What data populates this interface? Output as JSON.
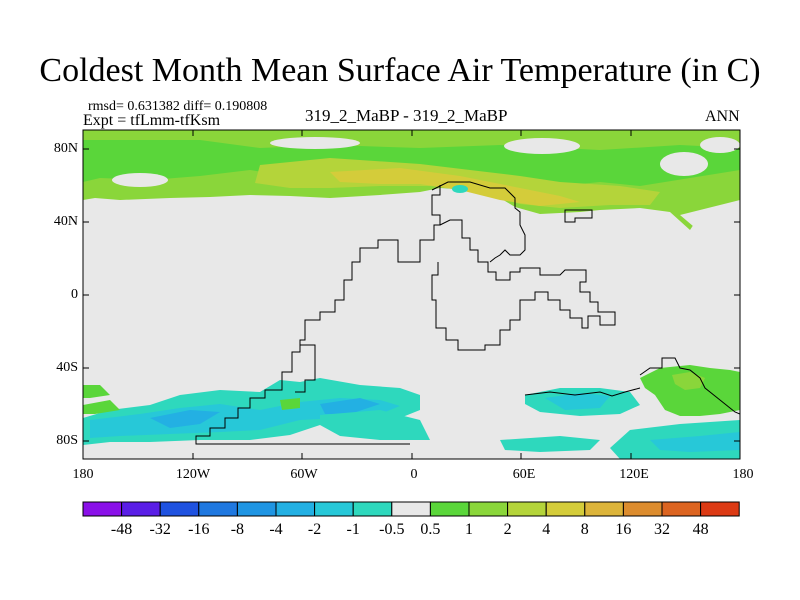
{
  "title": "Coldest Month Mean Surface Air Temperature (in C)",
  "stats_line": "rmsd= 0.631382 diff= 0.190808",
  "expt_line": "Expt = tfLmm-tfKsm",
  "center_label": "319_2_MaBP - 319_2_MaBP",
  "season_label": "ANN",
  "y_axis": {
    "ticks": [
      {
        "label": "80N",
        "lat": 80
      },
      {
        "label": "40N",
        "lat": 40
      },
      {
        "label": "0",
        "lat": 0
      },
      {
        "label": "40S",
        "lat": -40
      },
      {
        "label": "80S",
        "lat": -80
      }
    ]
  },
  "x_axis": {
    "ticks": [
      {
        "label": "180",
        "lon": -180
      },
      {
        "label": "120W",
        "lon": -120
      },
      {
        "label": "60W",
        "lon": -60
      },
      {
        "label": "0",
        "lon": 0
      },
      {
        "label": "60E",
        "lon": 60
      },
      {
        "label": "120E",
        "lon": 120
      },
      {
        "label": "180",
        "lon": 180
      }
    ]
  },
  "colorbar": {
    "colors": [
      "#8a10e8",
      "#5a1ee6",
      "#1f52e0",
      "#1f78e0",
      "#1f95e3",
      "#23b0e3",
      "#27c8d8",
      "#2ed8bd",
      "#e8e8e8",
      "#5ad63a",
      "#8ad63a",
      "#b4d43a",
      "#d4cc3a",
      "#dcb43a",
      "#dc8c2e",
      "#dc6420",
      "#dc3a14"
    ],
    "labels": [
      "-48",
      "-32",
      "-16",
      "-8",
      "-4",
      "-2",
      "-1",
      "-0.5",
      "0.5",
      "1",
      "2",
      "4",
      "8",
      "16",
      "32",
      "48"
    ]
  },
  "chart_data": {
    "type": "map",
    "projection": "cylindrical-equidistant",
    "lon_range": [
      -180,
      180
    ],
    "lat_range": [
      -90,
      90
    ],
    "variable": "Coldest Month Mean Surface Air Temperature",
    "units": "C",
    "background_category": "-0.5 to 0.5"
  }
}
